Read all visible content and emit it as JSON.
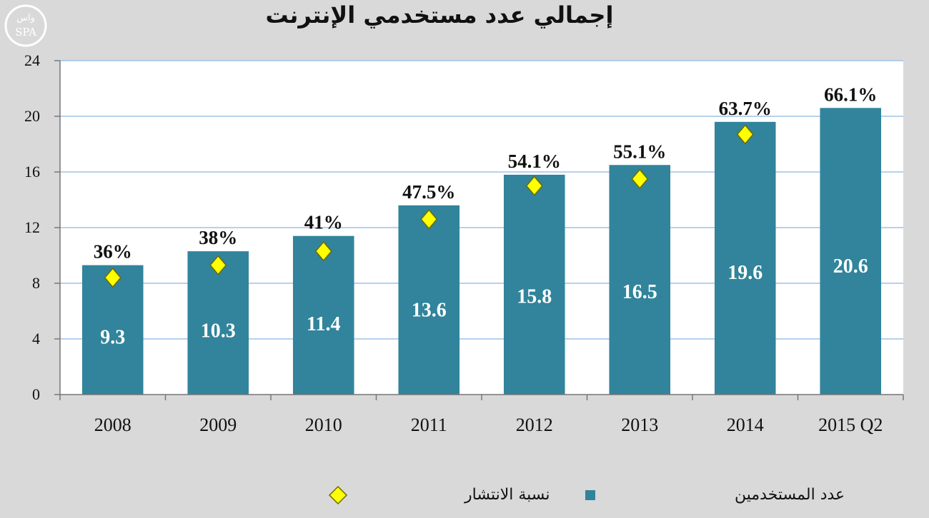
{
  "logo": {
    "arabic": "واس",
    "latin": "SPA"
  },
  "chart_data": {
    "type": "bar",
    "title": "إجمالي عدد مستخدمي الإنترنت",
    "categories": [
      "2008",
      "2009",
      "2010",
      "2011",
      "2012",
      "2013",
      "2014",
      "2015 Q2"
    ],
    "series": [
      {
        "name": "عدد المستخدمين",
        "type": "bar",
        "color": "#31849b",
        "values": [
          9.3,
          10.3,
          11.4,
          13.6,
          15.8,
          16.5,
          19.6,
          20.6
        ],
        "labels": [
          "9.3",
          "10.3",
          "11.4",
          "13.6",
          "15.8",
          "16.5",
          "19.6",
          "20.6"
        ]
      },
      {
        "name": "نسبة الانتشار",
        "type": "marker",
        "marker": "diamond",
        "color": "#ffff00",
        "values": [
          8.4,
          9.3,
          10.3,
          12.6,
          15.0,
          15.5,
          18.7,
          null
        ],
        "labels": [
          "36%",
          "38%",
          "41%",
          "47.5%",
          "54.1%",
          "55.1%",
          "63.7%",
          "66.1%"
        ]
      }
    ],
    "ylim": [
      0,
      24
    ],
    "yticks": [
      0,
      4,
      8,
      12,
      16,
      20,
      24
    ],
    "grid": true,
    "legend": "bottom",
    "plot_background": "#ffffff",
    "gridline_color": "#9dc3e6"
  }
}
